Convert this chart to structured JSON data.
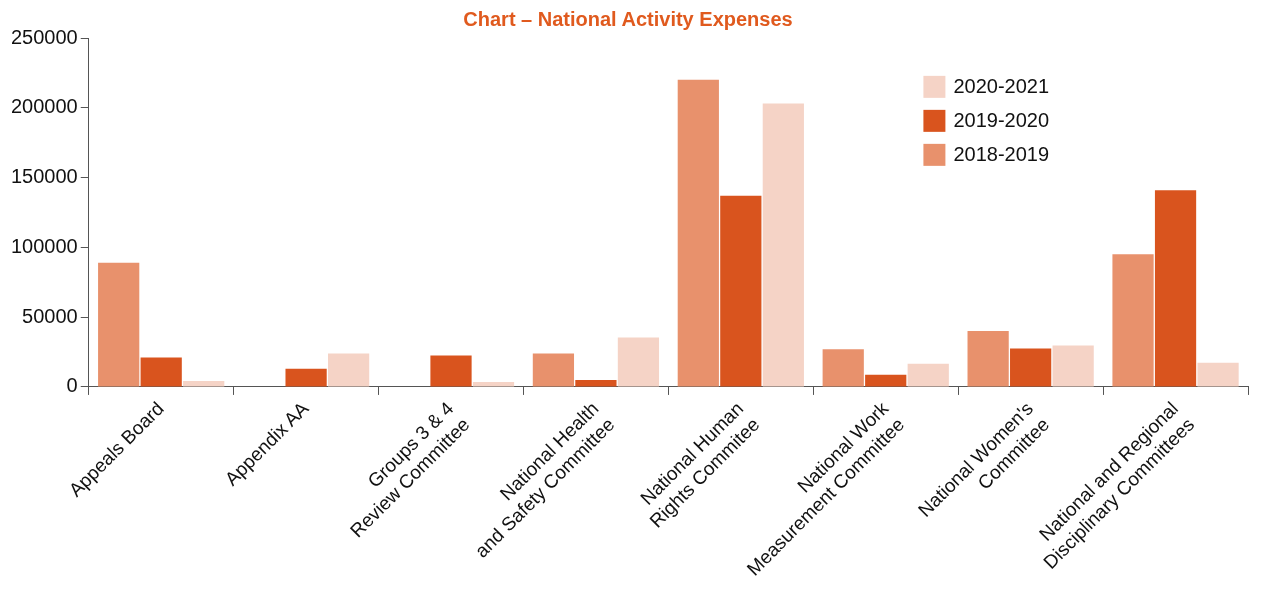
{
  "chart_data": {
    "type": "bar",
    "title": "Chart – National Activity Expenses",
    "categories": [
      "Appeals Board",
      "Appendix AA",
      "Groups 3 & 4\nReview Committee",
      "National Health\nand Safety Committee",
      "National Human\nRights Commitee",
      "National Work\nMeasurement Committee",
      "National Women's\nCommittee",
      "National and Regional\nDisciplinary Committees"
    ],
    "series": [
      {
        "name": "2018-2019",
        "color": "#e8916c",
        "values": [
          89000,
          0,
          0,
          24000,
          220000,
          27000,
          40000,
          95000
        ]
      },
      {
        "name": "2019-2020",
        "color": "#d9541e",
        "values": [
          21000,
          13000,
          22500,
          5000,
          137000,
          8700,
          27500,
          141000
        ]
      },
      {
        "name": "2020-2021",
        "color": "#f5d3c6",
        "values": [
          4300,
          24000,
          3600,
          35500,
          203000,
          16700,
          29700,
          17400
        ]
      }
    ],
    "ylim": [
      0,
      250000
    ],
    "yticks": [
      0,
      50000,
      100000,
      150000,
      200000,
      250000
    ],
    "grid": false,
    "legend": "top right"
  }
}
